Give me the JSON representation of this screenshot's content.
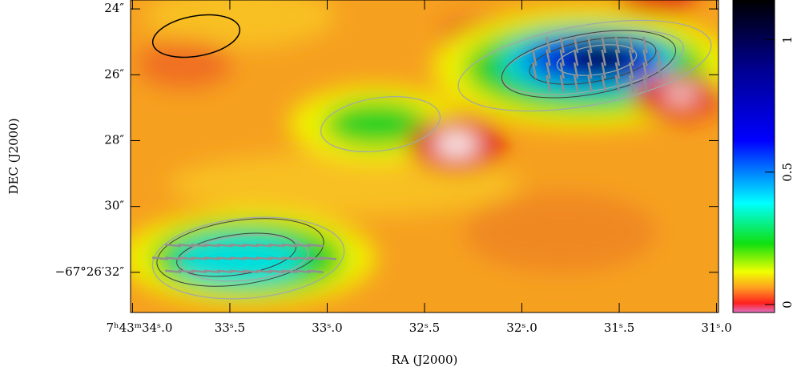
{
  "chart_data": {
    "type": "image",
    "xlabel": "RA (J2000)",
    "ylabel": "DEC (J2000)",
    "xlim": [
      34.01,
      30.99
    ],
    "xticks": [
      {
        "value": 34.0,
        "label": "7ʰ43ᵐ34ˢ.0"
      },
      {
        "value": 33.5,
        "label": "33ˢ.5"
      },
      {
        "value": 33.0,
        "label": "33ˢ.0"
      },
      {
        "value": 32.5,
        "label": "32ˢ.5"
      },
      {
        "value": 32.0,
        "label": "32ˢ.0"
      },
      {
        "value": 31.5,
        "label": "31ˢ.5"
      },
      {
        "value": 31.0,
        "label": "31ˢ.0"
      }
    ],
    "ylim": [
      23.73,
      33.22
    ],
    "yticks": [
      {
        "value": 24,
        "label": "24″"
      },
      {
        "value": 26,
        "label": "26″"
      },
      {
        "value": 28,
        "label": "28″"
      },
      {
        "value": 30,
        "label": "30″"
      },
      {
        "value": 32,
        "label": "−67°26′32″"
      }
    ],
    "colorbar": {
      "lim": [
        -0.03,
        1.15
      ],
      "ticks": [
        0,
        0.5,
        1
      ]
    }
  }
}
